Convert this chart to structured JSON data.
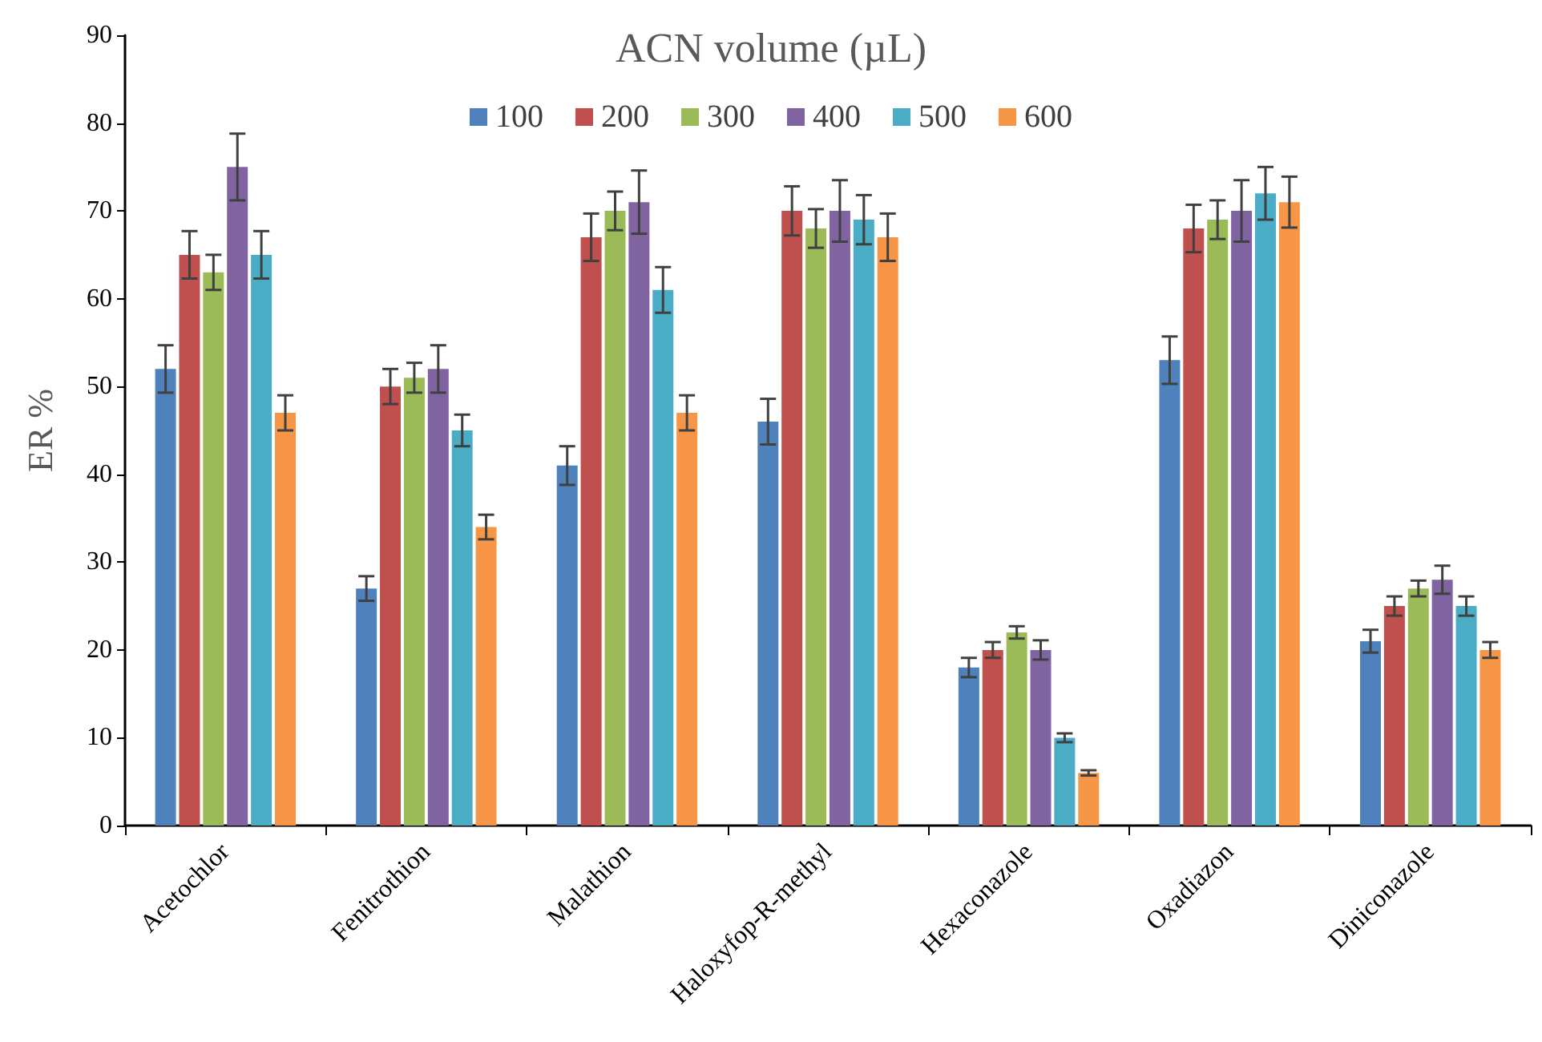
{
  "chart_data": {
    "type": "bar",
    "legend_title": "ACN volume (µL)",
    "ylabel": "ER %",
    "categories": [
      "Acetochlor",
      "Fenitrothion",
      "Malathion",
      "Haloxyfop-R-methyl",
      "Hexaconazole",
      "Oxadiazon",
      "Diniconazole"
    ],
    "series": [
      {
        "name": "100",
        "color": "#4f81bd",
        "values": [
          52,
          27,
          41,
          46,
          18,
          53,
          21
        ],
        "errors": [
          2.7,
          1.4,
          2.2,
          2.6,
          1.1,
          2.7,
          1.3
        ]
      },
      {
        "name": "200",
        "color": "#c0504d",
        "values": [
          65,
          50,
          67,
          70,
          20,
          68,
          25
        ],
        "errors": [
          2.7,
          2,
          2.7,
          2.8,
          0.9,
          2.7,
          1.1
        ]
      },
      {
        "name": "300",
        "color": "#9bbb59",
        "values": [
          63,
          51,
          70,
          68,
          22,
          69,
          27
        ],
        "errors": [
          2,
          1.7,
          2.2,
          2.2,
          0.7,
          2.2,
          0.9
        ]
      },
      {
        "name": "400",
        "color": "#8064a2",
        "values": [
          75,
          52,
          71,
          70,
          20,
          70,
          28
        ],
        "errors": [
          3.8,
          2.7,
          3.6,
          3.5,
          1.1,
          3.5,
          1.6
        ]
      },
      {
        "name": "500",
        "color": "#4bacc6",
        "values": [
          65,
          45,
          61,
          69,
          10,
          72,
          25
        ],
        "errors": [
          2.7,
          1.8,
          2.6,
          2.8,
          0.5,
          3,
          1.1
        ]
      },
      {
        "name": "600",
        "color": "#f79646",
        "values": [
          47,
          34,
          47,
          67,
          6,
          71,
          20
        ],
        "errors": [
          2,
          1.4,
          2,
          2.7,
          0.3,
          2.9,
          0.9
        ]
      }
    ],
    "ylim": [
      0,
      90
    ],
    "yticks": [
      0,
      10,
      20,
      30,
      40,
      50,
      60,
      70,
      80,
      90
    ],
    "grid": false,
    "legend": "top"
  }
}
